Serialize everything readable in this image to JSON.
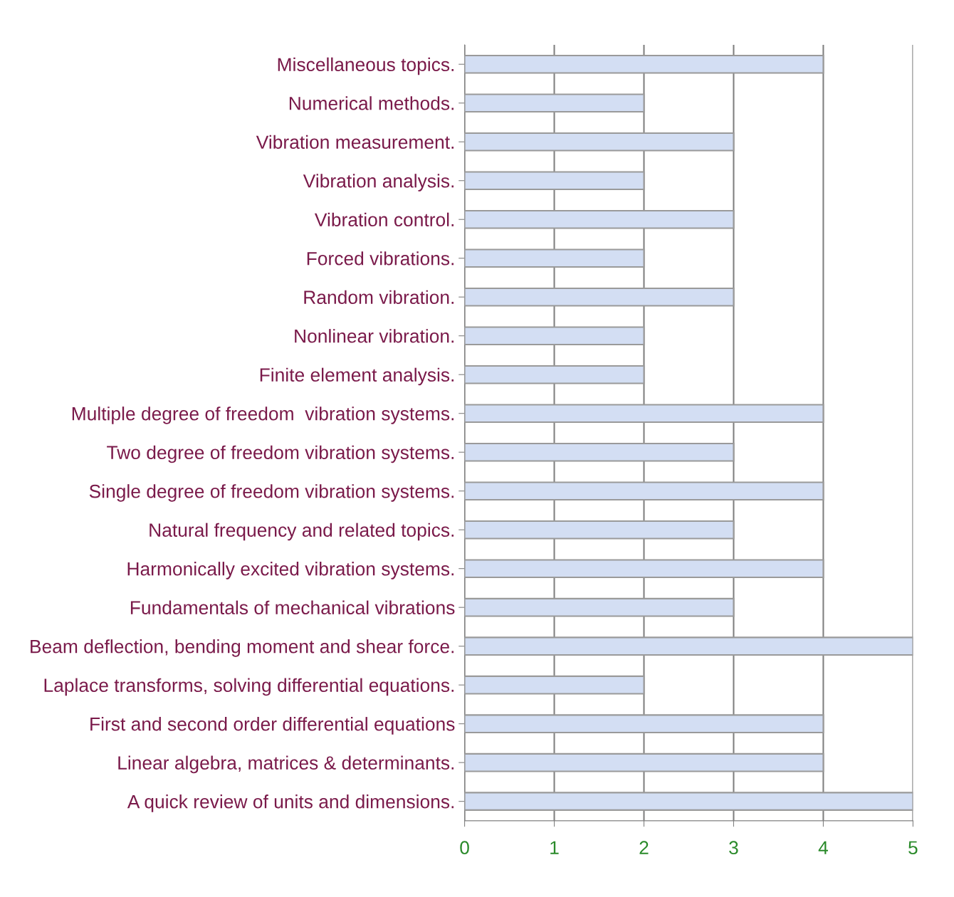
{
  "chart_data": {
    "type": "bar",
    "orientation": "horizontal",
    "categories": [
      "Miscellaneous topics.",
      "Numerical methods.",
      "Vibration measurement.",
      "Vibration analysis.",
      "Vibration control.",
      "Forced vibrations.",
      "Random vibration.",
      "Nonlinear vibration.",
      "Finite element analysis.",
      "Multiple degree of freedom  vibration systems.",
      "Two degree of freedom vibration systems.",
      "Single degree of freedom vibration systems.",
      "Natural frequency and related topics.",
      "Harmonically excited vibration systems.",
      "Fundamentals of mechanical vibrations",
      "Beam deflection, bending moment and shear force.",
      "Laplace transforms, solving differential equations.",
      "First and second order differential equations",
      "Linear algebra, matrices & determinants.",
      "A quick review of units and dimensions."
    ],
    "values": [
      4,
      2,
      3,
      2,
      3,
      2,
      3,
      2,
      2,
      4,
      3,
      4,
      3,
      4,
      3,
      5,
      2,
      4,
      4,
      5
    ],
    "color": "#d3def3",
    "xlim": [
      0,
      5
    ],
    "xticks": [
      0,
      1,
      2,
      3,
      4,
      5
    ],
    "grid": "x"
  }
}
